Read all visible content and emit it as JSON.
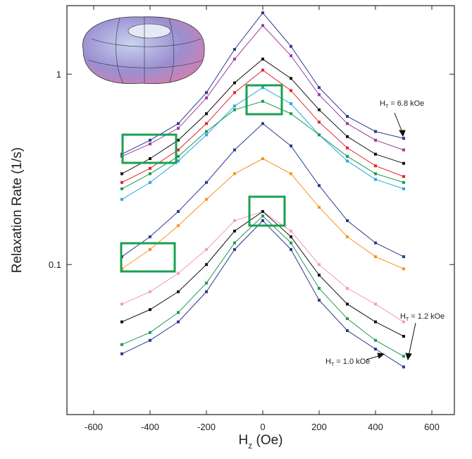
{
  "chart_data": {
    "type": "line",
    "x_label": {
      "main": "H",
      "sub": "z",
      "rest": " (Oe)"
    },
    "y_label": "Relaxation Rate (1/s)",
    "log_y": true,
    "xlim": [
      -695,
      680
    ],
    "ylim": [
      0.0163,
      2.29
    ],
    "xticks": [
      -600,
      -400,
      -200,
      0,
      200,
      400,
      600
    ],
    "yticks": [
      0.1,
      1
    ],
    "x": [
      -500,
      -400,
      -300,
      -200,
      -100,
      0,
      100,
      200,
      300,
      400,
      500
    ],
    "series": [
      {
        "color": "#2b3a8f",
        "values": [
          0.38,
          0.45,
          0.55,
          0.8,
          1.35,
          2.1,
          1.4,
          0.85,
          0.6,
          0.5,
          0.46
        ]
      },
      {
        "color": "#9b3c9b",
        "values": [
          0.37,
          0.43,
          0.52,
          0.75,
          1.2,
          1.8,
          1.25,
          0.78,
          0.55,
          0.45,
          0.4
        ]
      },
      {
        "color": "#111111",
        "values": [
          0.3,
          0.36,
          0.45,
          0.62,
          0.9,
          1.2,
          0.95,
          0.65,
          0.47,
          0.38,
          0.34
        ]
      },
      {
        "color": "#e3242b",
        "values": [
          0.27,
          0.32,
          0.4,
          0.55,
          0.8,
          1.05,
          0.82,
          0.56,
          0.41,
          0.33,
          0.29
        ]
      },
      {
        "color": "#2aa7df",
        "values": [
          0.22,
          0.27,
          0.35,
          0.48,
          0.68,
          0.85,
          0.7,
          0.48,
          0.35,
          0.28,
          0.25
        ]
      },
      {
        "color": "#1a9a50",
        "values": [
          0.25,
          0.3,
          0.37,
          0.5,
          0.65,
          0.72,
          0.62,
          0.48,
          0.37,
          0.3,
          0.27
        ]
      },
      {
        "color": "#2b3a8f",
        "values": [
          0.11,
          0.14,
          0.19,
          0.27,
          0.4,
          0.55,
          0.42,
          0.26,
          0.17,
          0.13,
          0.11
        ]
      },
      {
        "color": "#f7941d",
        "values": [
          0.095,
          0.12,
          0.16,
          0.22,
          0.3,
          0.36,
          0.3,
          0.2,
          0.14,
          0.11,
          0.095
        ]
      },
      {
        "color": "#f49ac1",
        "values": [
          0.062,
          0.072,
          0.09,
          0.12,
          0.17,
          0.19,
          0.15,
          0.1,
          0.075,
          0.062,
          0.05
        ]
      },
      {
        "color": "#111111",
        "values": [
          0.05,
          0.058,
          0.072,
          0.1,
          0.15,
          0.19,
          0.14,
          0.088,
          0.062,
          0.05,
          0.042
        ]
      },
      {
        "color": "#1a9a50",
        "values": [
          0.038,
          0.044,
          0.056,
          0.08,
          0.13,
          0.18,
          0.13,
          0.075,
          0.052,
          0.04,
          0.033
        ]
      },
      {
        "color": "#2b3a8f",
        "values": [
          0.034,
          0.04,
          0.05,
          0.072,
          0.12,
          0.17,
          0.12,
          0.065,
          0.045,
          0.036,
          0.029
        ]
      }
    ],
    "annotations": [
      {
        "main": "H",
        "sub": "T",
        "rest": " = 6.8 kOe"
      },
      {
        "main": "H",
        "sub": "T",
        "rest": " = 1.2 kOe"
      },
      {
        "main": "H",
        "sub": "T",
        "rest": " = 1.0 kOe"
      }
    ]
  }
}
